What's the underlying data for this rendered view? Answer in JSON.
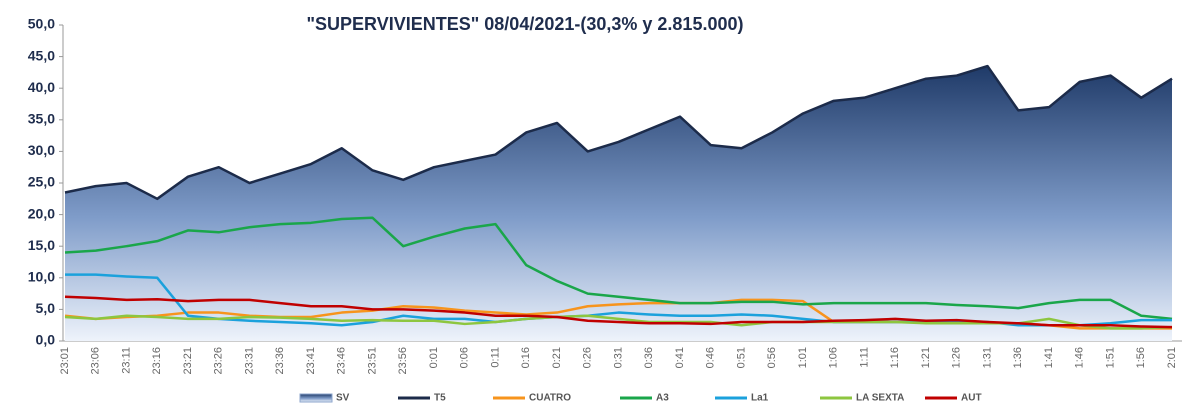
{
  "chart_data": {
    "type": "line",
    "title": "\"SUPERVIVIENTES\" 08/04/2021-(30,3% y 2.815.000)",
    "categories": [
      "23:01",
      "23:06",
      "23:11",
      "23:16",
      "23:21",
      "23:26",
      "23:31",
      "23:36",
      "23:41",
      "23:46",
      "23:51",
      "23:56",
      "0:01",
      "0:06",
      "0:11",
      "0:16",
      "0:21",
      "0:26",
      "0:31",
      "0:36",
      "0:41",
      "0:46",
      "0:51",
      "0:56",
      "1:01",
      "1:06",
      "1:11",
      "1:16",
      "1:21",
      "1:26",
      "1:31",
      "1:36",
      "1:41",
      "1:46",
      "1:51",
      "1:56",
      "2:01"
    ],
    "ylim": [
      0,
      50
    ],
    "yticks": [
      {
        "value": 0,
        "label": "0,0"
      },
      {
        "value": 5,
        "label": "5,0"
      },
      {
        "value": 10,
        "label": "10,0"
      },
      {
        "value": 15,
        "label": "15,0"
      },
      {
        "value": 20,
        "label": "20,0"
      },
      {
        "value": 25,
        "label": "25,0"
      },
      {
        "value": 30,
        "label": "30,0"
      },
      {
        "value": 35,
        "label": "35,0"
      },
      {
        "value": 40,
        "label": "40,0"
      },
      {
        "value": 45,
        "label": "45,0"
      },
      {
        "value": 50,
        "label": "50,0"
      }
    ],
    "grid": false,
    "legend": "bottom",
    "series": [
      {
        "name": "SV",
        "color": "#1f3a68",
        "style": "area",
        "values": [
          23.5,
          24.5,
          25,
          22.5,
          26,
          27.5,
          25,
          26.5,
          28,
          30.5,
          27,
          25.5,
          27.5,
          28.5,
          29.5,
          33,
          34.5,
          30,
          31.5,
          33.5,
          35.5,
          31,
          30.5,
          33,
          36,
          38,
          38.5,
          40,
          41.5,
          42,
          43.5,
          36.5,
          37,
          41,
          42,
          38.5,
          41.5
        ]
      },
      {
        "name": "T5",
        "color": "#1c2b4a",
        "style": "line",
        "values": [
          23.5,
          24.5,
          25,
          22.5,
          26,
          27.5,
          25,
          26.5,
          28,
          30.5,
          27,
          25.5,
          27.5,
          28.5,
          29.5,
          33,
          34.5,
          30,
          31.5,
          33.5,
          35.5,
          31,
          30.5,
          33,
          36,
          38,
          38.5,
          40,
          41.5,
          42,
          43.5,
          36.5,
          37,
          41,
          42,
          38.5,
          41.5
        ]
      },
      {
        "name": "CUATRO",
        "color": "#f7941d",
        "style": "line",
        "values": [
          4,
          3.5,
          3.8,
          4,
          4.5,
          4.5,
          4,
          3.8,
          3.8,
          4.5,
          4.8,
          5.5,
          5.3,
          4.8,
          4.5,
          4.2,
          4.5,
          5.5,
          5.8,
          6,
          6,
          6,
          6.5,
          6.5,
          6.3,
          3,
          3,
          3,
          3,
          3,
          2.8,
          2.8,
          2.5,
          2,
          2,
          2,
          2
        ]
      },
      {
        "name": "A3",
        "color": "#1aa64a",
        "style": "line",
        "values": [
          14,
          14.3,
          15,
          15.8,
          17.5,
          17.2,
          18,
          18.5,
          18.7,
          19.3,
          19.5,
          15,
          16.5,
          17.8,
          18.5,
          12,
          9.5,
          7.5,
          7,
          6.5,
          6,
          6,
          6.2,
          6.2,
          5.8,
          6,
          6,
          6,
          6,
          5.7,
          5.5,
          5.2,
          6,
          6.5,
          6.5,
          4,
          3.5
        ]
      },
      {
        "name": "La1",
        "color": "#1ba1dc",
        "style": "line",
        "values": [
          10.5,
          10.5,
          10.2,
          10,
          4,
          3.5,
          3.2,
          3,
          2.8,
          2.5,
          3,
          4,
          3.5,
          3.5,
          3,
          3.5,
          3.8,
          4,
          4.5,
          4.2,
          4,
          4,
          4.2,
          4,
          3.5,
          3,
          3,
          3,
          3,
          3,
          3,
          2.5,
          2.5,
          2.5,
          2.8,
          3.3,
          3.3
        ]
      },
      {
        "name": "LA SEXTA",
        "color": "#8dc63f",
        "style": "line",
        "values": [
          3.8,
          3.5,
          4,
          3.8,
          3.5,
          3.5,
          3.8,
          3.7,
          3.5,
          3.2,
          3.3,
          3.2,
          3.2,
          2.7,
          3,
          3.5,
          3.8,
          4,
          3.5,
          3,
          3,
          3,
          2.5,
          3,
          3,
          3,
          3,
          3,
          2.8,
          2.8,
          2.8,
          2.8,
          3.5,
          2.5,
          2,
          2,
          2.2
        ]
      },
      {
        "name": "AUT",
        "color": "#c00000",
        "style": "line",
        "values": [
          7,
          6.8,
          6.5,
          6.6,
          6.3,
          6.5,
          6.5,
          6,
          5.5,
          5.5,
          5,
          5,
          4.8,
          4.5,
          4,
          4,
          3.8,
          3.2,
          3,
          2.8,
          2.8,
          2.7,
          3,
          3,
          3,
          3.2,
          3.3,
          3.5,
          3.2,
          3.3,
          3,
          2.8,
          2.5,
          2.5,
          2.5,
          2.3,
          2.2
        ]
      }
    ]
  }
}
